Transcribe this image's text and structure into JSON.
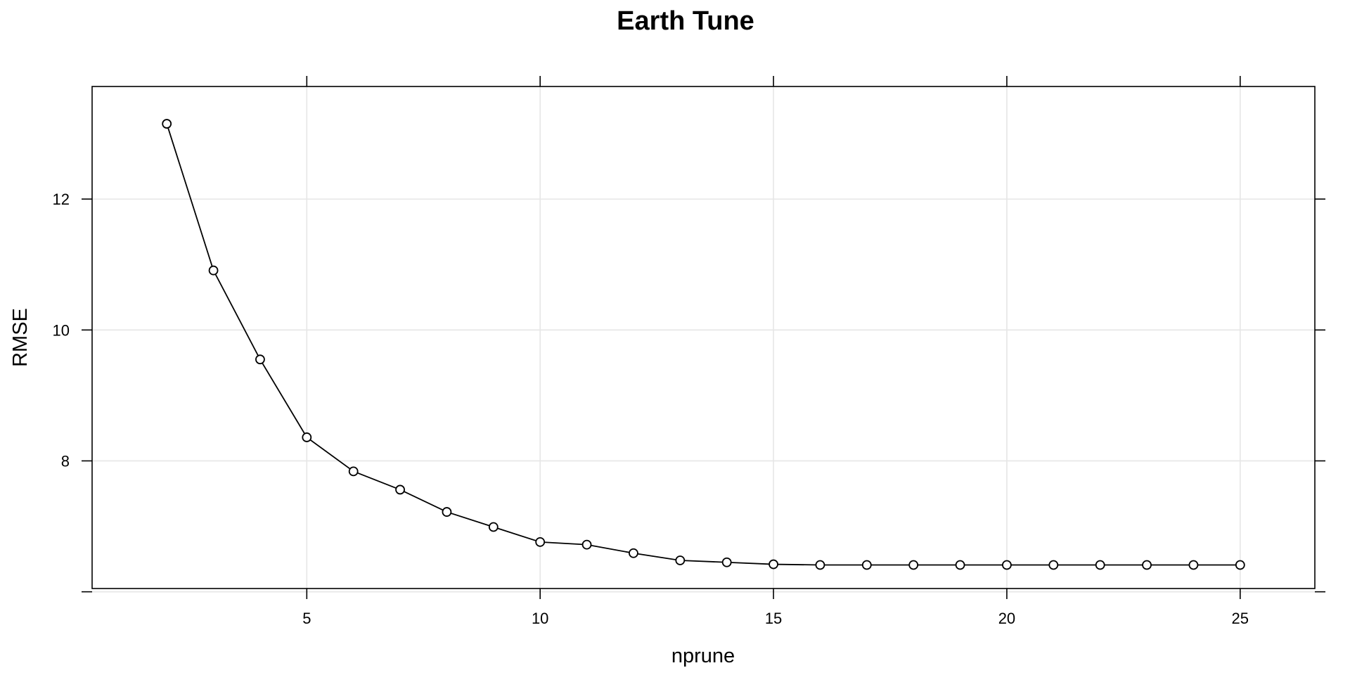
{
  "chart_data": {
    "type": "line",
    "title": "Earth Tune",
    "xlabel": "nprune",
    "ylabel": "RMSE",
    "xlim": [
      0.4,
      26.6
    ],
    "ylim": [
      6.05,
      13.72
    ],
    "x_ticks": [
      5,
      10,
      15,
      20,
      25
    ],
    "y_ticks": [
      8,
      10,
      12
    ],
    "y_extra_tick": 6,
    "grid": true,
    "marker": "open-circle",
    "colors": {
      "line": "#000000",
      "grid": "#e6e6e6",
      "frame": "#000000"
    },
    "series": [
      {
        "x": [
          2,
          3,
          4,
          5,
          6,
          7,
          8,
          9,
          10,
          11,
          12,
          13,
          14,
          15,
          16,
          17,
          18,
          19,
          20,
          21,
          22,
          23,
          24,
          25
        ],
        "values": [
          13.15,
          10.91,
          9.55,
          8.36,
          7.84,
          7.56,
          7.22,
          6.99,
          6.76,
          6.72,
          6.59,
          6.48,
          6.45,
          6.42,
          6.41,
          6.41,
          6.41,
          6.41,
          6.41,
          6.41,
          6.41,
          6.41,
          6.41,
          6.41
        ]
      }
    ]
  }
}
